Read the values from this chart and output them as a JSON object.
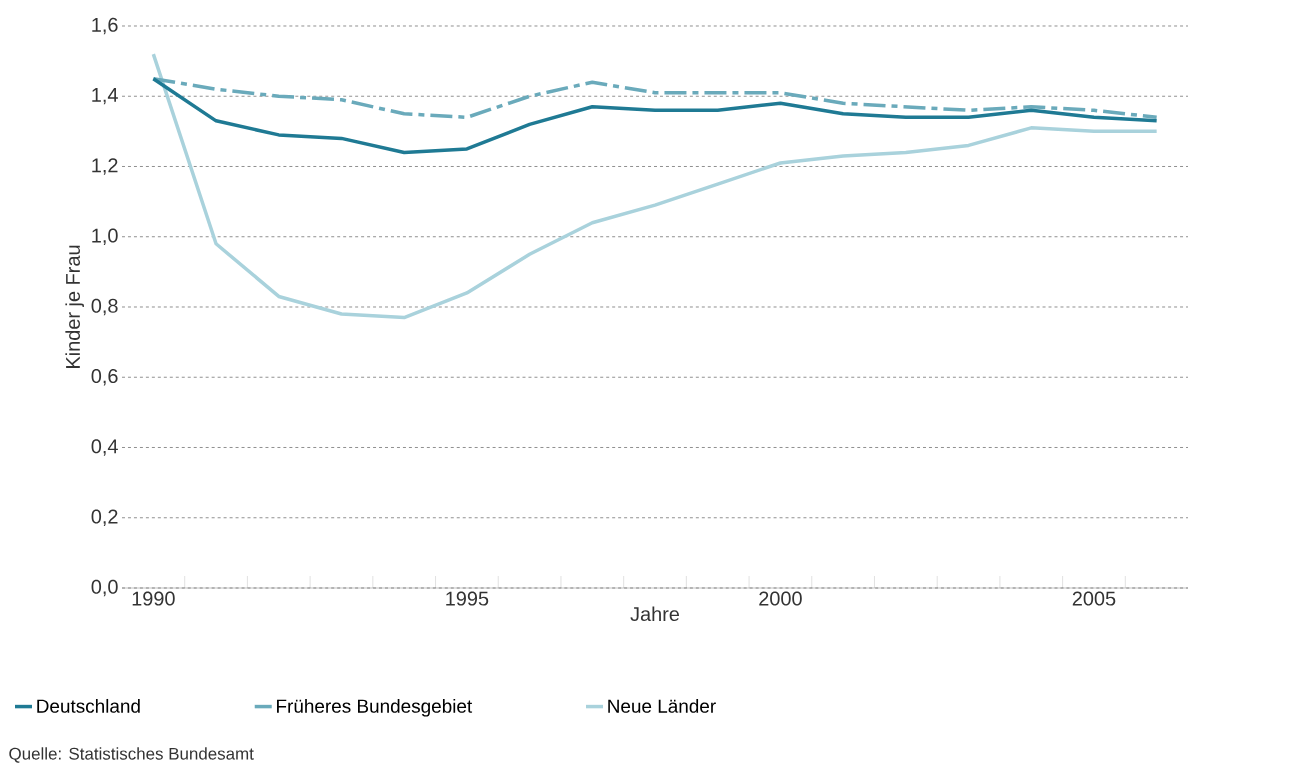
{
  "chart_data": {
    "type": "line",
    "xlabel": "Jahre",
    "ylabel": "Kinder je Frau",
    "x": [
      1990,
      1991,
      1992,
      1993,
      1994,
      1995,
      1996,
      1997,
      1998,
      1999,
      2000,
      2001,
      2002,
      2003,
      2004,
      2005,
      2006
    ],
    "series": [
      {
        "name": "Deutschland",
        "color": "#1f7a94",
        "line_style": "solid",
        "values": [
          1.45,
          1.33,
          1.29,
          1.28,
          1.24,
          1.25,
          1.32,
          1.37,
          1.36,
          1.36,
          1.38,
          1.35,
          1.34,
          1.34,
          1.36,
          1.34,
          1.33
        ]
      },
      {
        "name": "Früheres Bundesgebiet",
        "color": "#6aaabb",
        "line_style": "dashdot",
        "values": [
          1.45,
          1.42,
          1.4,
          1.39,
          1.35,
          1.34,
          1.4,
          1.44,
          1.41,
          1.41,
          1.41,
          1.38,
          1.37,
          1.36,
          1.37,
          1.36,
          1.34
        ]
      },
      {
        "name": "Neue Länder",
        "color": "#a9d2dc",
        "line_style": "solid",
        "values": [
          1.52,
          0.98,
          0.83,
          0.78,
          0.77,
          0.84,
          0.95,
          1.04,
          1.09,
          1.15,
          1.21,
          1.23,
          1.24,
          1.26,
          1.31,
          1.3,
          1.3
        ]
      }
    ],
    "xlim": [
      1989.5,
      2006.5
    ],
    "xticks": [
      1990,
      {
        "value": 1990.5,
        "label": null
      },
      {
        "value": 1991.5,
        "label": null
      },
      {
        "value": 1992.5,
        "label": null
      },
      {
        "value": 1993.5,
        "label": null
      },
      {
        "value": 1994.5,
        "label": null
      },
      1995,
      {
        "value": 1995.5,
        "label": null
      },
      {
        "value": 1996.5,
        "label": null
      },
      {
        "value": 1997.5,
        "label": null
      },
      {
        "value": 1998.5,
        "label": null
      },
      {
        "value": 1999.5,
        "label": null
      },
      2000,
      {
        "value": 2000.5,
        "label": null
      },
      {
        "value": 2001.5,
        "label": null
      },
      {
        "value": 2002.5,
        "label": null
      },
      {
        "value": 2003.5,
        "label": null
      },
      {
        "value": 2004.5,
        "label": null
      },
      2005,
      {
        "value": 2005.5,
        "label": null
      }
    ],
    "ylim": [
      0,
      1.6
    ],
    "yticks": [
      {
        "value": 0,
        "label": "0,0"
      },
      {
        "value": 0.2,
        "label": "0,2"
      },
      {
        "value": 0.4,
        "label": "0,4"
      },
      {
        "value": 0.6,
        "label": "0,6"
      },
      {
        "value": 0.8,
        "label": "0,8"
      },
      {
        "value": 1.0,
        "label": "1,0"
      },
      {
        "value": 1.2,
        "label": "1,2"
      },
      {
        "value": 1.4,
        "label": "1,4"
      },
      {
        "value": 1.6,
        "label": "1,6"
      }
    ],
    "grid": "y",
    "legend": "bottom",
    "annotations": [
      "Quelle: Statistisches Bundesamt"
    ]
  }
}
